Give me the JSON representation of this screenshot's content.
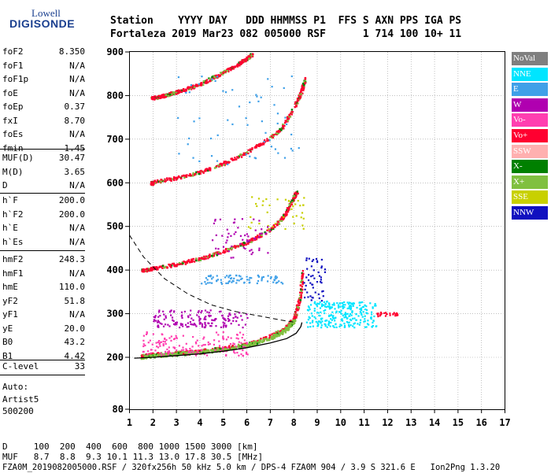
{
  "logo": {
    "top": "Lowell",
    "bottom": "DIGISONDE"
  },
  "header": {
    "line1": "Station    YYYY DAY   DDD HHMMSS P1  FFS S AXN PPS IGA PS",
    "line2": "Fortaleza 2019 Mar23 082 005000 RSF      1 714 100 10+ 11"
  },
  "params_group1": [
    {
      "label": "foF2",
      "value": "8.350"
    },
    {
      "label": "foF1",
      "value": "N/A"
    },
    {
      "label": "foF1p",
      "value": "N/A"
    },
    {
      "label": "foE",
      "value": "N/A"
    },
    {
      "label": "foEp",
      "value": "0.37"
    },
    {
      "label": "fxI",
      "value": "8.70"
    },
    {
      "label": "foEs",
      "value": "N/A"
    },
    {
      "label": "fmin",
      "value": "1.45"
    }
  ],
  "params_group2": [
    {
      "label": "MUF(D)",
      "value": "30.47"
    },
    {
      "label": "M(D)",
      "value": "3.65"
    },
    {
      "label": "D",
      "value": "N/A"
    }
  ],
  "params_group3": [
    {
      "label": "h`F",
      "value": "200.0"
    },
    {
      "label": "h`F2",
      "value": "200.0"
    },
    {
      "label": "h`E",
      "value": "N/A"
    },
    {
      "label": "h`Es",
      "value": "N/A"
    }
  ],
  "params_group4": [
    {
      "label": "hmF2",
      "value": "248.3"
    },
    {
      "label": "hmF1",
      "value": "N/A"
    },
    {
      "label": "hmE",
      "value": "110.0"
    },
    {
      "label": "yF2",
      "value": "51.8"
    },
    {
      "label": "yF1",
      "value": "N/A"
    },
    {
      "label": "yE",
      "value": "20.0"
    },
    {
      "label": "B0",
      "value": "43.2"
    },
    {
      "label": "B1",
      "value": "4.42"
    }
  ],
  "clevel": {
    "label": "C-level",
    "value": "33"
  },
  "autoscale": {
    "line1": "Auto:",
    "line2": "Artist5",
    "line3": "500200"
  },
  "chart_data": {
    "type": "scatter",
    "xlim": [
      1,
      17
    ],
    "ylim": [
      80,
      900
    ],
    "x_ticks": [
      "1",
      "2",
      "3",
      "4",
      "5",
      "6",
      "7",
      "8",
      "9",
      "10",
      "11",
      "12",
      "13",
      "14",
      "15",
      "16",
      "17"
    ],
    "y_ticks": [
      "80",
      "200",
      "300",
      "400",
      "500",
      "600",
      "700",
      "800",
      "900"
    ],
    "grid": true,
    "legend": [
      "NoVal",
      "NNE",
      "E",
      "W",
      "Vo-",
      "Vo+",
      "SSW",
      "X-",
      "X+",
      "SSE",
      "NNW"
    ],
    "legend_colors": [
      "#7f7f7f",
      "#00e5ff",
      "#3fa0e8",
      "#b000b0",
      "#ff3fb0",
      "#ff0030",
      "#ffb0b0",
      "#008000",
      "#80c040",
      "#c8d000",
      "#1010c0"
    ],
    "traces": [
      {
        "name": "Vo+",
        "x": [
          1.5,
          2,
          3,
          4,
          5,
          6,
          7,
          7.6,
          8,
          8.25,
          8.35
        ],
        "y": [
          205,
          208,
          212,
          216,
          222,
          232,
          250,
          268,
          290,
          340,
          400
        ]
      },
      {
        "name": "Vo+",
        "x": [
          1.5,
          2,
          3,
          4,
          5,
          6,
          7,
          7.5,
          7.9,
          8.1
        ],
        "y": [
          400,
          405,
          415,
          428,
          445,
          465,
          495,
          520,
          560,
          580
        ]
      },
      {
        "name": "Vo+",
        "x": [
          1.9,
          2,
          3,
          4,
          5,
          6,
          7,
          7.5,
          8,
          8.3,
          8.45
        ],
        "y": [
          600,
          603,
          613,
          626,
          646,
          672,
          705,
          730,
          775,
          810,
          840
        ]
      },
      {
        "name": "Vo+",
        "x": [
          1.9,
          2.5,
          3,
          4,
          5,
          5.8,
          6.2
        ],
        "y": [
          795,
          802,
          810,
          828,
          855,
          880,
          895
        ]
      },
      {
        "name": "X+",
        "x": [
          1.5,
          2,
          3,
          4,
          5,
          6,
          7,
          7.6,
          8.0
        ],
        "y": [
          202,
          205,
          209,
          213,
          219,
          229,
          246,
          262,
          285
        ]
      }
    ],
    "profile_solid": {
      "x": [
        1.2,
        2,
        3,
        4,
        5,
        6,
        7,
        7.7,
        8.1,
        8.3,
        8.35
      ],
      "y": [
        198,
        200,
        204,
        208,
        214,
        222,
        233,
        243,
        255,
        270,
        280
      ]
    },
    "profile_dashed": {
      "x": [
        1,
        1.6,
        2.5,
        3.5,
        4.5,
        5.5,
        6.5,
        7.5,
        8.1
      ],
      "y": [
        480,
        430,
        380,
        345,
        320,
        305,
        295,
        285,
        280
      ]
    }
  },
  "bottom": {
    "line1": "D     100  200  400  600  800 1000 1500 3000 [km]",
    "line2": "MUF   8.7  8.8  9.3 10.1 11.3 13.0 17.8 30.5 [MHz]",
    "line3": "FZA0M_2019082005000.RSF / 320fx256h 50 kHz 5.0 km / DPS-4 FZA0M 904 / 3.9 S 321.6 E   Ion2Png 1.3.20"
  }
}
